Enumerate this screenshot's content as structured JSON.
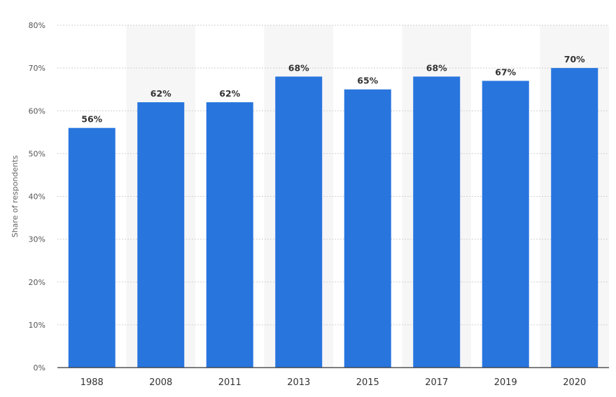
{
  "chart_data": {
    "type": "bar",
    "categories": [
      "1988",
      "2008",
      "2011",
      "2013",
      "2015",
      "2017",
      "2019",
      "2020"
    ],
    "values": [
      56,
      62,
      62,
      68,
      65,
      68,
      67,
      70
    ],
    "value_labels": [
      "56%",
      "62%",
      "62%",
      "68%",
      "65%",
      "68%",
      "67%",
      "70%"
    ],
    "title": "",
    "xlabel": "",
    "ylabel": "Share of respondents",
    "ylim": [
      0,
      80
    ],
    "y_ticks": [
      0,
      10,
      20,
      30,
      40,
      50,
      60,
      70,
      80
    ],
    "y_tick_labels": [
      "0%",
      "10%",
      "20%",
      "30%",
      "40%",
      "50%",
      "60%",
      "70%",
      "80%"
    ],
    "grid": true,
    "alternating_column_shading": true,
    "legend": "none",
    "colors": {
      "bar": "#2875de",
      "column_shade": "#f6f6f6",
      "gridline": "#cfcfcf",
      "axis": "#333333"
    }
  }
}
